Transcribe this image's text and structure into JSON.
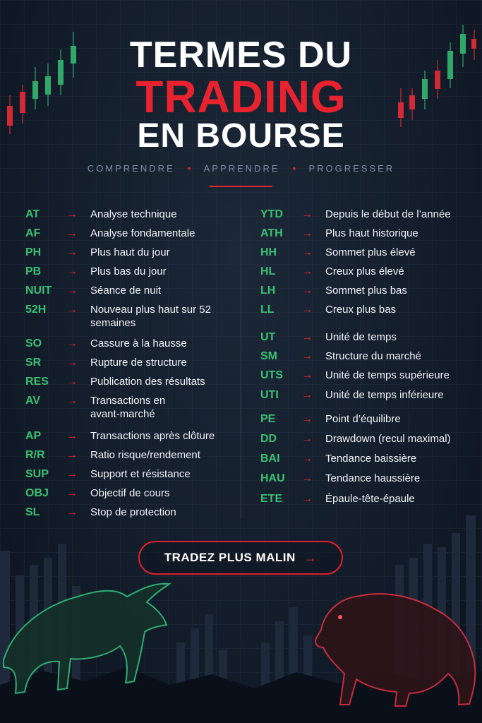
{
  "title": {
    "line1": "TERMES DU",
    "line2": "TRADING",
    "line3": "EN BOURSE"
  },
  "tagline": {
    "items": [
      "COMPRENDRE",
      "APPRENDRE",
      "PROGRESSER"
    ],
    "separator": "•"
  },
  "arrow_glyph": "→",
  "colors": {
    "accent_red": "#e8232f",
    "accent_green": "#3ac072",
    "background": "#131d2b",
    "text": "#f1f3f6"
  },
  "left_terms": [
    {
      "abbr": "AT",
      "def": "Analyse technique"
    },
    {
      "abbr": "AF",
      "def": "Analyse fondamentale"
    },
    {
      "abbr": "PH",
      "def": "Plus haut du jour"
    },
    {
      "abbr": "PB",
      "def": "Plus bas du jour"
    },
    {
      "abbr": "NUIT",
      "def": "Séance de nuit"
    },
    {
      "abbr": "52H",
      "def": "Nouveau plus haut sur 52 semaines"
    },
    {
      "abbr": "SO",
      "def": "Cassure à la hausse"
    },
    {
      "abbr": "SR",
      "def": "Rupture de structure"
    },
    {
      "abbr": "RES",
      "def": "Publication des résultats"
    },
    {
      "abbr": "AV",
      "def": "Transactions en avant-marché"
    },
    {
      "abbr": "AP",
      "def": "Transactions après clôture"
    },
    {
      "abbr": "R/R",
      "def": "Ratio risque/rendement"
    },
    {
      "abbr": "SUP",
      "def": "Support et résistance"
    },
    {
      "abbr": "OBJ",
      "def": "Objectif de cours"
    },
    {
      "abbr": "SL",
      "def": "Stop de protection"
    }
  ],
  "right_terms": [
    {
      "abbr": "YTD",
      "def": "Depuis le début de l’année"
    },
    {
      "abbr": "ATH",
      "def": "Plus haut historique"
    },
    {
      "abbr": "HH",
      "def": "Sommet plus élevé"
    },
    {
      "abbr": "HL",
      "def": "Creux plus élevé"
    },
    {
      "abbr": "LH",
      "def": "Sommet plus bas"
    },
    {
      "abbr": "LL",
      "def": "Creux plus bas"
    },
    {
      "abbr": "UT",
      "def": "Unité de temps"
    },
    {
      "abbr": "SM",
      "def": "Structure du marché"
    },
    {
      "abbr": "UTS",
      "def": "Unité de temps supérieure"
    },
    {
      "abbr": "UTI",
      "def": "Unité de temps inférieure"
    },
    {
      "abbr": "PE",
      "def": "Point d’équilibre"
    },
    {
      "abbr": "DD",
      "def": "Drawdown (recul maximal)"
    },
    {
      "abbr": "BAI",
      "def": "Tendance baissière"
    },
    {
      "abbr": "HAU",
      "def": "Tendance haussière"
    },
    {
      "abbr": "ETE",
      "def": "Épaule-tête-épaule"
    }
  ],
  "cta": {
    "label": "TRADEZ PLUS MALIN",
    "icon": "arrow-right-icon"
  },
  "decorations": {
    "left_icon": "bull-icon",
    "right_icon": "bear-icon",
    "corner_icons": "candlestick-chart-icon"
  }
}
